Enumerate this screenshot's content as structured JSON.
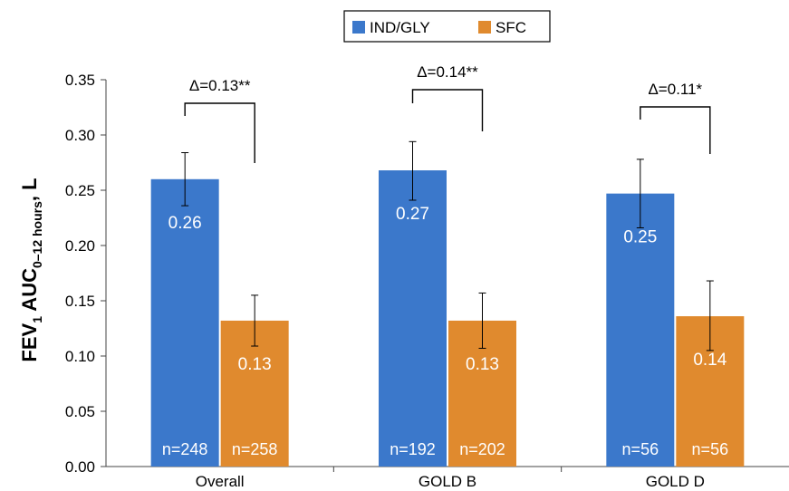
{
  "chart_data": {
    "type": "bar",
    "ylabel": {
      "main": "FEV",
      "sub1": "1",
      "mid": " AUC",
      "sub2": "0–12 hours",
      "tail": ", L"
    },
    "ylim": [
      0,
      0.35
    ],
    "yticks": [
      "0.00",
      "0.05",
      "0.10",
      "0.15",
      "0.20",
      "0.25",
      "0.30",
      "0.35"
    ],
    "categories": [
      "Overall",
      "GOLD B",
      "GOLD D"
    ],
    "legend_position": "top-center",
    "series": [
      {
        "name": "IND/GLY",
        "color": "#3b78cb",
        "values": [
          0.26,
          0.268,
          0.247
        ],
        "value_labels": [
          "0.26",
          "0.27",
          "0.25"
        ],
        "err_low": [
          0.236,
          0.241,
          0.216
        ],
        "err_high": [
          0.284,
          0.294,
          0.278
        ],
        "n_labels": [
          "n=248",
          "n=192",
          "n=56"
        ]
      },
      {
        "name": "SFC",
        "color": "#e08a2e",
        "values": [
          0.132,
          0.132,
          0.136
        ],
        "value_labels": [
          "0.13",
          "0.13",
          "0.14"
        ],
        "err_low": [
          0.109,
          0.107,
          0.105
        ],
        "err_high": [
          0.155,
          0.157,
          0.168
        ],
        "n_labels": [
          "n=258",
          "n=202",
          "n=56"
        ]
      }
    ],
    "annotations": [
      {
        "text": "Δ=0.13**"
      },
      {
        "text": "Δ=0.14**"
      },
      {
        "text": "Δ=0.11*"
      }
    ]
  }
}
